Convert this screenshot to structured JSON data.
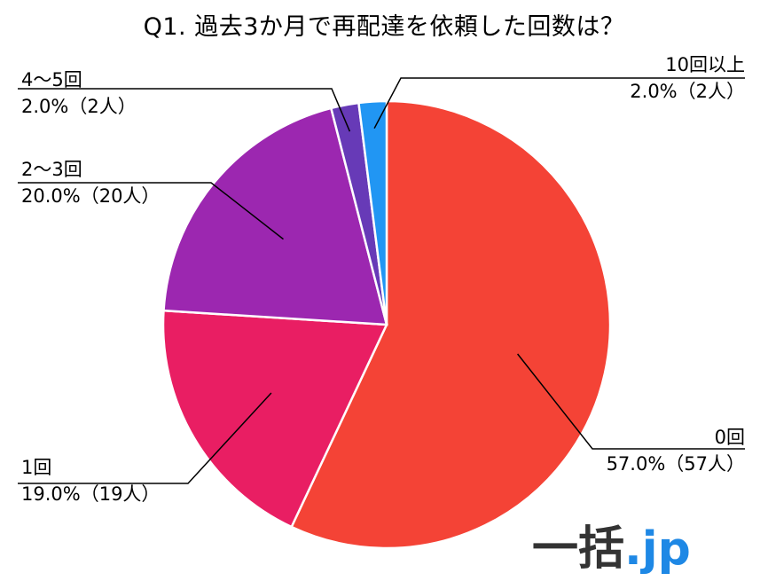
{
  "title": "Q1. 過去3か月で再配達を依頼した回数は？",
  "logo": {
    "main": "一括",
    "domain": ".jp"
  },
  "chart_data": {
    "type": "pie",
    "title": "Q1. 過去3か月で再配達を依頼した回数は？",
    "slices": [
      {
        "label": "0回",
        "percent_text": "57.0%（57人）",
        "value": 57,
        "color": "#f44336"
      },
      {
        "label": "1回",
        "percent_text": "19.0%（19人）",
        "value": 19,
        "color": "#e91e63"
      },
      {
        "label": "2〜3回",
        "percent_text": "20.0%（20人）",
        "value": 20,
        "color": "#9c27b0"
      },
      {
        "label": "4〜5回",
        "percent_text": "2.0%（2人）",
        "value": 2,
        "color": "#673ab7"
      },
      {
        "label": "10回以上",
        "percent_text": "2.0%（2人）",
        "value": 2,
        "color": "#2196f3"
      }
    ],
    "start": "top",
    "direction": "clockwise"
  }
}
